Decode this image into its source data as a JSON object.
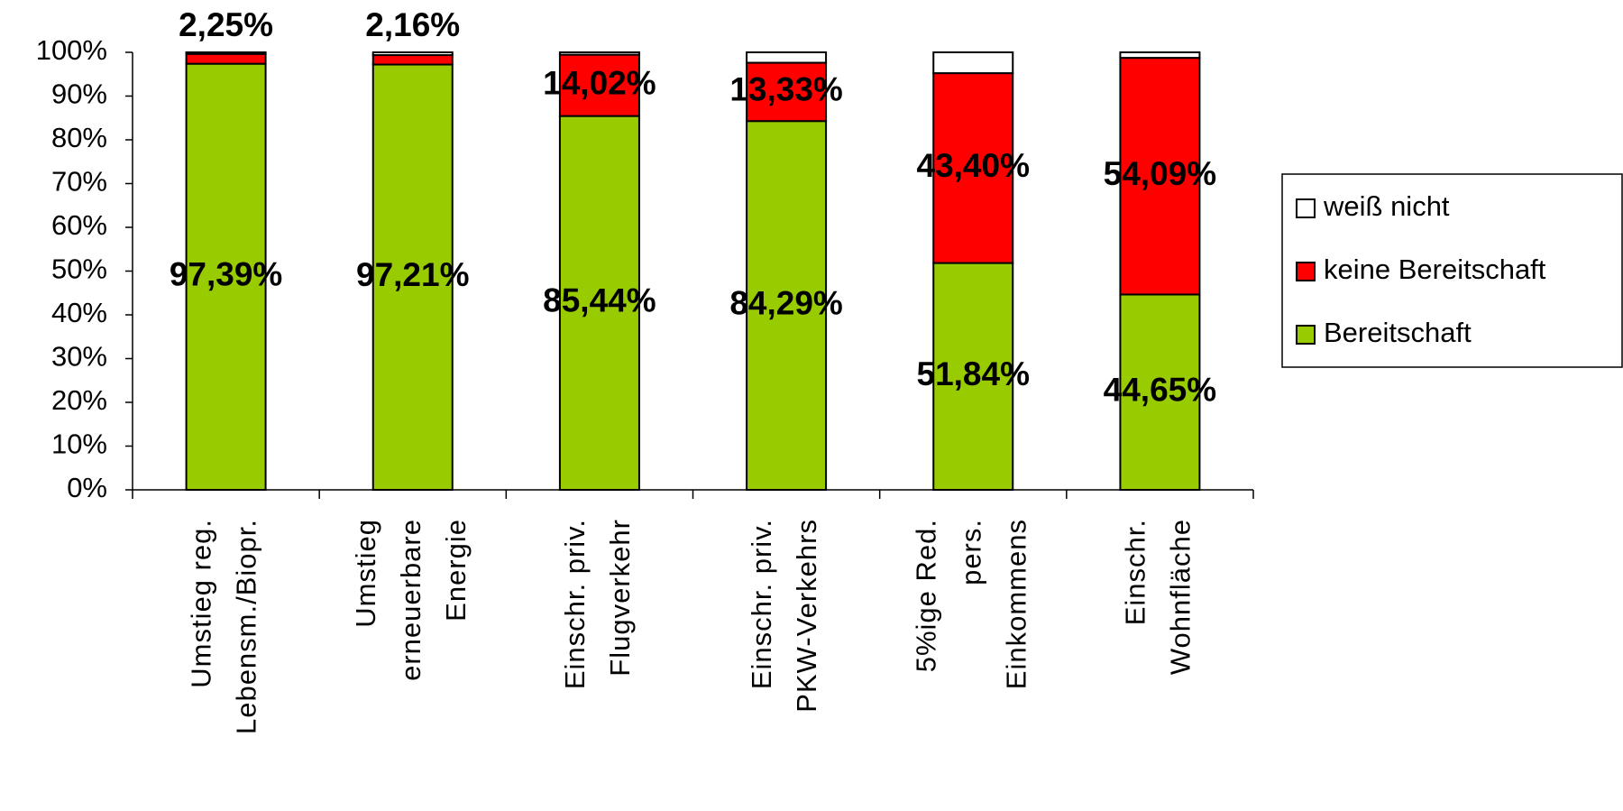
{
  "chart_data": {
    "type": "stacked_bar",
    "categories": [
      "Umstieg reg.\nLebensm./Biopr.",
      "Umstieg\nerneuerbare\nEnergie",
      "Einschr. priv.\nFlugverkehr",
      "Einschr. priv.\nPKW-Verkehrs",
      "5%ige Red.\npers.\nEinkommens",
      "Einschr.\nWohnfläche"
    ],
    "series": [
      {
        "name": "Bereitschaft",
        "color": "#99cc00",
        "values": [
          97.39,
          97.21,
          85.44,
          84.29,
          51.84,
          44.65
        ],
        "value_labels": [
          "97,39%",
          "97,21%",
          "85,44%",
          "84,29%",
          "51,84%",
          "44,65%"
        ]
      },
      {
        "name": "keine Bereitschaft",
        "color": "#ff0000",
        "values": [
          2.25,
          2.16,
          14.02,
          13.33,
          43.4,
          54.09
        ],
        "value_labels": [
          "2,25%",
          "2,16%",
          "14,02%",
          "13,33%",
          "43,40%",
          "54,09%"
        ]
      },
      {
        "name": "weiß nicht",
        "color": "#ffffff",
        "values": [
          0.36,
          0.63,
          0.54,
          2.38,
          4.76,
          1.26
        ]
      }
    ],
    "ylim": [
      0,
      100
    ],
    "yticks": [
      {
        "value": 0,
        "label": "0%"
      },
      {
        "value": 10,
        "label": "10%"
      },
      {
        "value": 20,
        "label": "20%"
      },
      {
        "value": 30,
        "label": "30%"
      },
      {
        "value": 40,
        "label": "40%"
      },
      {
        "value": 50,
        "label": "50%"
      },
      {
        "value": 60,
        "label": "60%"
      },
      {
        "value": 70,
        "label": "70%"
      },
      {
        "value": 80,
        "label": "80%"
      },
      {
        "value": 90,
        "label": "90%"
      },
      {
        "value": 100,
        "label": "100%"
      }
    ],
    "legend": "right"
  }
}
